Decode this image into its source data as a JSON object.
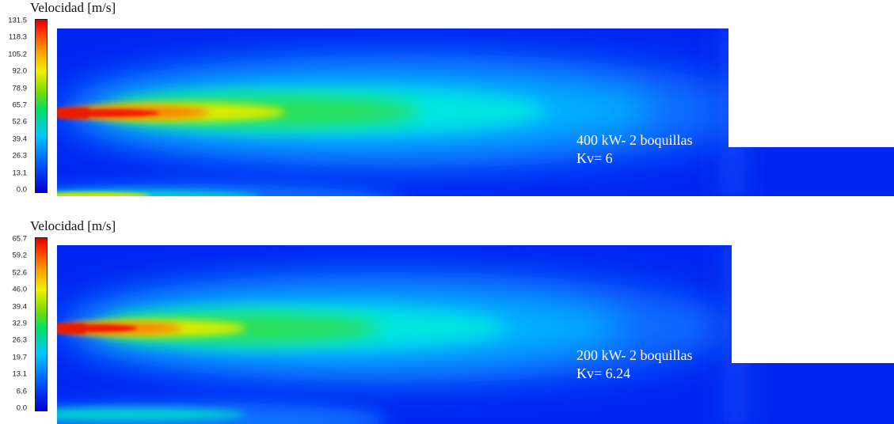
{
  "panels": [
    {
      "title": "Velocidad [m/s]",
      "colorbar_ticks": [
        "131.5",
        "118.3",
        "105.2",
        "92.0",
        "78.9",
        "65.7",
        "52.6",
        "39.4",
        "26.3",
        "13.1",
        "0.0"
      ],
      "annotation_line1": "400 kW- 2 boquillas",
      "annotation_line2": "Kv= 6"
    },
    {
      "title": "Velocidad [m/s]",
      "colorbar_ticks": [
        "65.7",
        "59.2",
        "52.6",
        "46.0",
        "39.4",
        "32.9",
        "26.3",
        "19.7",
        "13.1",
        "6.6",
        "0.0"
      ],
      "annotation_line1": "200 kW- 2 boquillas",
      "annotation_line2": "Kv= 6.24"
    }
  ],
  "colors": {
    "background": "#0022f0",
    "jet_core": "#e81a00",
    "text_overlay": "#ffffff"
  }
}
